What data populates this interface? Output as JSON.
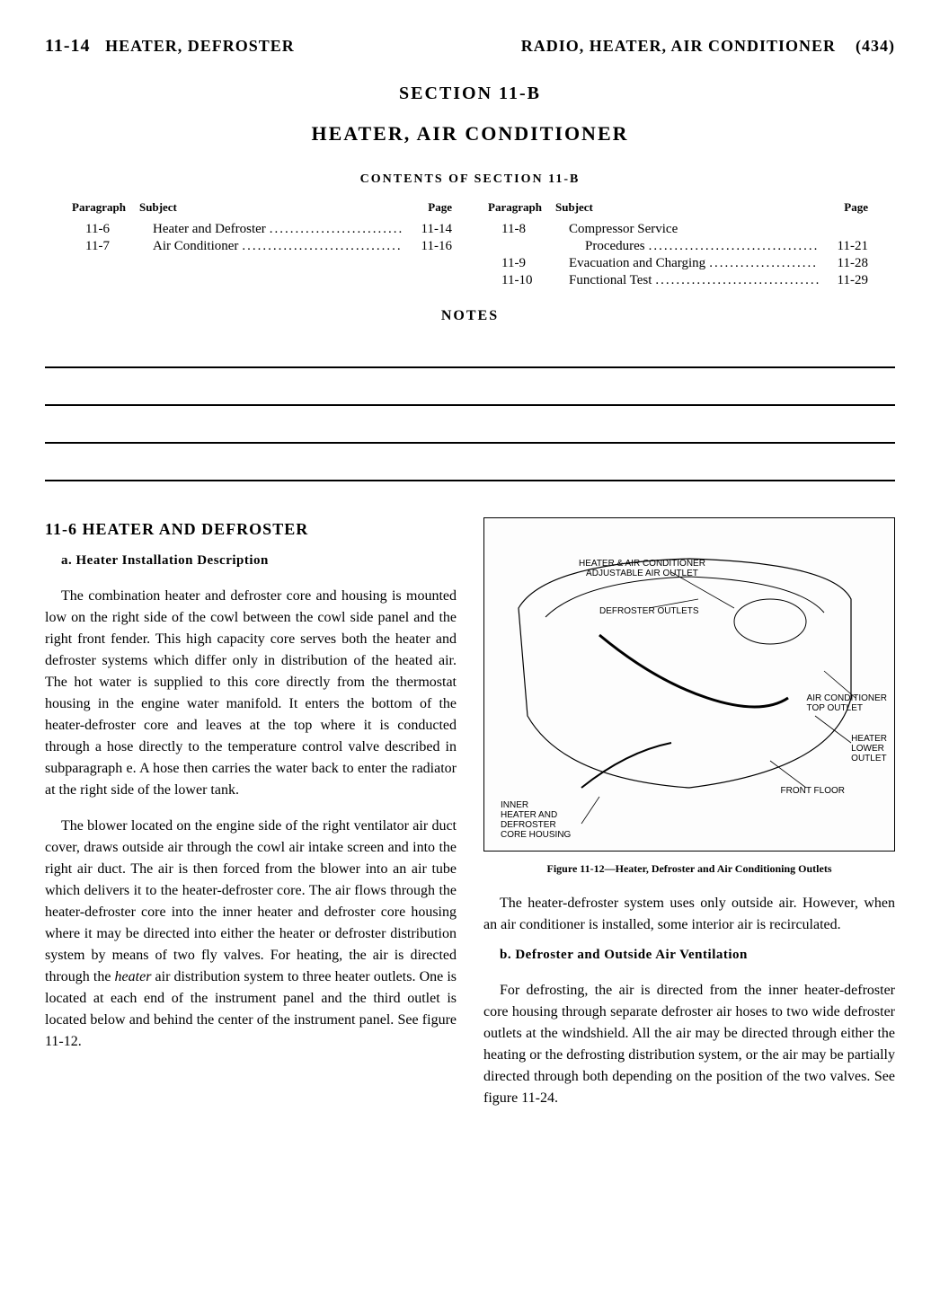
{
  "header": {
    "left_page": "11-14",
    "left_title": "HEATER, DEFROSTER",
    "right_title": "RADIO, HEATER, AIR CONDITIONER",
    "right_page": "(434)"
  },
  "section": {
    "number": "SECTION 11-B",
    "title": "HEATER, AIR CONDITIONER",
    "contents_heading": "CONTENTS OF SECTION 11-B"
  },
  "toc": {
    "headers": {
      "paragraph": "Paragraph",
      "subject": "Subject",
      "page": "Page"
    },
    "left": [
      {
        "para": "11-6",
        "subject": "Heater and Defroster",
        "page": "11-14"
      },
      {
        "para": "11-7",
        "subject": "Air Conditioner",
        "page": "11-16"
      }
    ],
    "right": [
      {
        "para": "11-8",
        "subject": "Compressor Service",
        "page": ""
      },
      {
        "para": "",
        "subject_indent": "Procedures",
        "page": "11-21"
      },
      {
        "para": "11-9",
        "subject": "Evacuation and Charging",
        "page": "11-28"
      },
      {
        "para": "11-10",
        "subject": "Functional Test",
        "page": "11-29"
      }
    ]
  },
  "notes_heading": "NOTES",
  "body": {
    "para_heading": "11-6 HEATER AND DEFROSTER",
    "sub_a": "a. Heater Installation Description",
    "p1": "The combination heater and defroster core and housing is mounted low on the right side of the cowl between the cowl side panel and the right front fender. This high capacity core serves both the heater and defroster systems which differ only in distribution of the heated air. The hot water is supplied to this core directly from the thermostat housing in the engine water manifold. It enters the bottom of the heater-defroster core and leaves at the top where it is conducted through a hose directly to the temperature control valve described in subparagraph e. A hose then carries the water back to enter the radiator at the right side of the lower tank.",
    "p2a": "The blower located on the engine side of the right ventilator air duct cover, draws outside air through the cowl air intake screen and into the right air duct. The air is then forced from the blower into an air tube which delivers it to the heater-defroster core. The air flows through the heater-defroster core into the inner heater and defroster core housing where it may be directed into either the heater or defroster distribution system by means of two fly valves. For heating, the air is directed through the ",
    "p2_italic": "heater",
    "p2b": " air distribution system to three heater outlets. One is located at each end of the instrument panel and  the third outlet is located below and behind the center of the instrument panel. See figure 11-12.",
    "figure_caption": "Figure 11-12—Heater, Defroster and Air Conditioning Outlets",
    "p3": "The heater-defroster system uses only outside air. However, when an air conditioner is installed, some interior air is recirculated.",
    "sub_b": "b. Defroster and Outside Air Ventilation",
    "p4": "For defrosting, the air is directed from the inner heater-defroster core housing through separate defroster air hoses to two wide defroster outlets at the windshield. All the air may be directed through either the heating or the defrosting distribution system, or the air may be partially directed through both depending on the position of the two valves. See figure 11-24."
  },
  "figure_labels": {
    "l1": "HEATER & AIR CONDITIONER\nADJUSTABLE AIR OUTLET",
    "l2": "DEFROSTER OUTLETS",
    "l3": "AIR CONDITIONER\nTOP OUTLET",
    "l4": "HEATER\nLOWER\nOUTLET",
    "l5": "FRONT FLOOR",
    "l6": "INNER\nHEATER AND\nDEFROSTER\nCORE HOUSING"
  }
}
